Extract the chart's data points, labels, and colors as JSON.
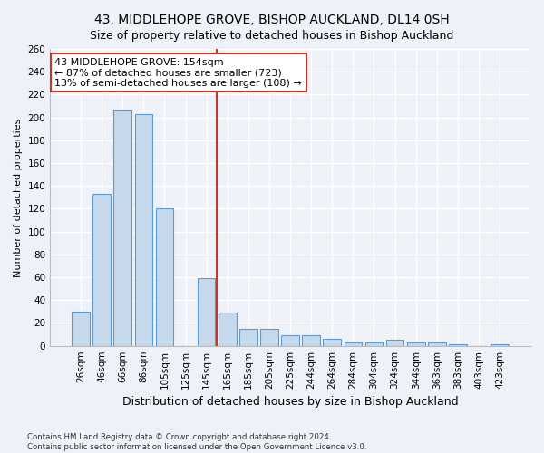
{
  "title1": "43, MIDDLEHOPE GROVE, BISHOP AUCKLAND, DL14 0SH",
  "title2": "Size of property relative to detached houses in Bishop Auckland",
  "xlabel": "Distribution of detached houses by size in Bishop Auckland",
  "ylabel": "Number of detached properties",
  "categories": [
    "26sqm",
    "46sqm",
    "66sqm",
    "86sqm",
    "105sqm",
    "125sqm",
    "145sqm",
    "165sqm",
    "185sqm",
    "205sqm",
    "225sqm",
    "244sqm",
    "264sqm",
    "284sqm",
    "304sqm",
    "324sqm",
    "344sqm",
    "363sqm",
    "383sqm",
    "403sqm",
    "423sqm"
  ],
  "values": [
    30,
    133,
    207,
    203,
    120,
    0,
    59,
    29,
    15,
    15,
    9,
    9,
    6,
    3,
    3,
    5,
    3,
    3,
    1,
    0,
    1
  ],
  "bar_color": "#c5d8ec",
  "bar_edge_color": "#5b9bd5",
  "annotation_line1": "43 MIDDLEHOPE GROVE: 154sqm",
  "annotation_line2": "← 87% of detached houses are smaller (723)",
  "annotation_line3": "13% of semi-detached houses are larger (108) →",
  "vline_color": "#c0392b",
  "vline_x_index": 6.5,
  "annotation_box_facecolor": "#ffffff",
  "annotation_box_edgecolor": "#c0392b",
  "footnote1": "Contains HM Land Registry data © Crown copyright and database right 2024.",
  "footnote2": "Contains public sector information licensed under the Open Government Licence v3.0.",
  "bg_color": "#eef2f8",
  "ylim": [
    0,
    260
  ],
  "yticks": [
    0,
    20,
    40,
    60,
    80,
    100,
    120,
    140,
    160,
    180,
    200,
    220,
    240,
    260
  ],
  "title1_fontsize": 10,
  "title2_fontsize": 9,
  "ylabel_fontsize": 8,
  "xlabel_fontsize": 9,
  "tick_fontsize": 7.5,
  "annot_fontsize": 8
}
